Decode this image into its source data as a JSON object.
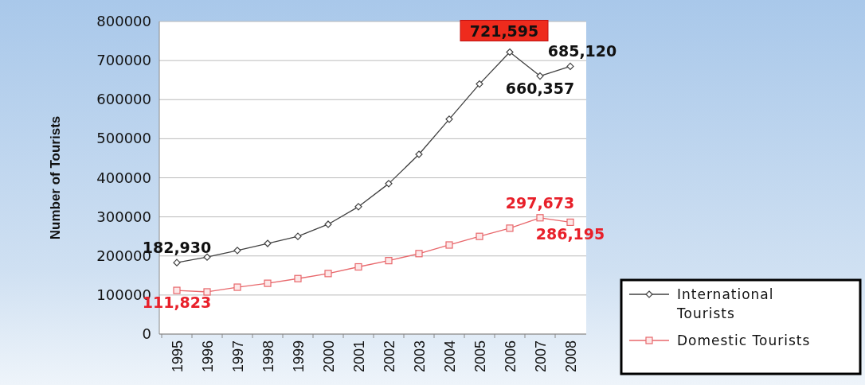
{
  "chart_data": {
    "type": "line",
    "ylabel": "Number of Tourists",
    "categories": [
      "1995",
      "1996",
      "1997",
      "1998",
      "1999",
      "2000",
      "2001",
      "2002",
      "2003",
      "2004",
      "2005",
      "2006",
      "2007",
      "2008"
    ],
    "series": [
      {
        "name": "International Tourists",
        "color": "#404040",
        "marker": "diamond",
        "values": [
          182930,
          197000,
          214000,
          232000,
          250000,
          281000,
          326000,
          385000,
          460000,
          550000,
          640000,
          721595,
          660357,
          685120
        ],
        "value_labels": [
          "182,930",
          null,
          null,
          null,
          null,
          null,
          null,
          null,
          null,
          null,
          null,
          "721,595",
          "660,357",
          "685,120"
        ]
      },
      {
        "name": "Domestic Tourists",
        "color": "#e8676b",
        "marker": "square",
        "values": [
          111823,
          108000,
          120000,
          130000,
          142000,
          155000,
          172000,
          188000,
          206000,
          228000,
          250000,
          271000,
          297673,
          286195
        ],
        "value_labels": [
          "111,823",
          null,
          null,
          null,
          null,
          null,
          null,
          null,
          null,
          null,
          null,
          null,
          "297,673",
          "286,195"
        ]
      }
    ],
    "ylim": [
      0,
      800000
    ],
    "yticks": [
      0,
      100000,
      200000,
      300000,
      400000,
      500000,
      600000,
      700000,
      800000
    ],
    "grid": "y",
    "legend": "bottom right"
  }
}
